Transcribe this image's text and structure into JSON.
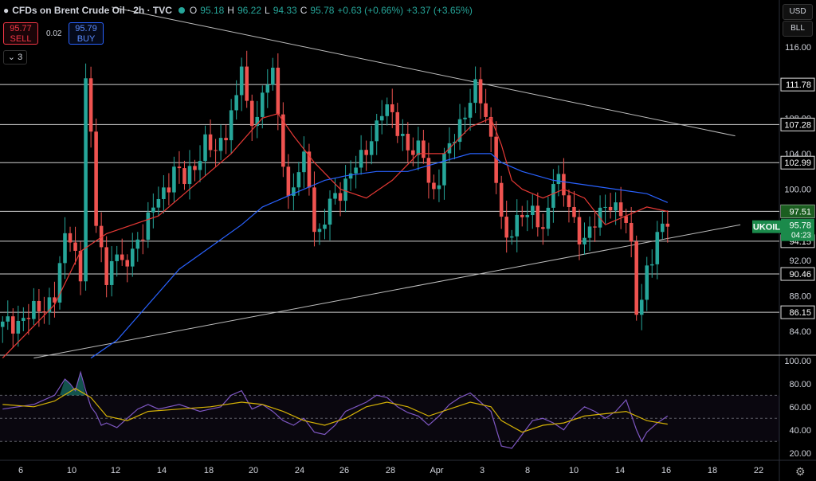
{
  "header": {
    "symbol": "CFDs on Brent Crude Oil · 2h · TVC",
    "open_label": "O",
    "open": "95.18",
    "high_label": "H",
    "high": "96.22",
    "low_label": "L",
    "low": "94.33",
    "close_label": "C",
    "close": "95.78",
    "change": "+0.63 (+0.66%)",
    "change2": "+3.37 (+3.65%)"
  },
  "trade": {
    "sell_price": "95.77",
    "sell_label": "SELL",
    "buy_price": "95.79",
    "buy_label": "BUY",
    "spread": "0.02"
  },
  "collapse_label": "3",
  "toolbar": {
    "currency": "USD",
    "unit": "BLL"
  },
  "colors": {
    "up": "#26a69a",
    "down": "#ef5350",
    "ema_short": "#e53935",
    "ema_long": "#2962ff",
    "rsi": "#7e57c2",
    "rsi_ma": "#d4b106"
  },
  "chart_data": [
    {
      "type": "candlestick",
      "title": "CFDs on Brent Crude Oil",
      "x_ticks": [
        "6",
        "10",
        "12",
        "14",
        "18",
        "20",
        "24",
        "26",
        "28",
        "Apr",
        "3",
        "8",
        "10",
        "14",
        "16",
        "18",
        "22"
      ],
      "y_ticks": [
        "116.00",
        "108.00",
        "104.00",
        "100.00",
        "92.00",
        "88.00",
        "84.00"
      ],
      "ylim": [
        81.5,
        119.5
      ],
      "horizontal_levels": [
        111.78,
        107.28,
        102.99,
        97.51,
        94.15,
        90.46,
        86.15
      ],
      "level_labels": [
        "111.78",
        "107.28",
        "102.99",
        "97.51",
        "94.15",
        "90.46",
        "86.15"
      ],
      "current": {
        "symbol": "UKOIL",
        "price": "95.78",
        "countdown": "04:23"
      },
      "close_path": [
        [
          0,
          84.5
        ],
        [
          6,
          86
        ],
        [
          10,
          88
        ],
        [
          12,
          94
        ],
        [
          13,
          95
        ],
        [
          14,
          93
        ],
        [
          14.5,
          96
        ],
        [
          15,
          90
        ],
        [
          15.5,
          115
        ],
        [
          16.5,
          111
        ],
        [
          17,
          105
        ],
        [
          18,
          96
        ],
        [
          18.5,
          100
        ],
        [
          19,
          94
        ],
        [
          20,
          89
        ],
        [
          21,
          93
        ],
        [
          22,
          92
        ],
        [
          23,
          91
        ],
        [
          24,
          92
        ],
        [
          25,
          93
        ],
        [
          26,
          95
        ],
        [
          27,
          95
        ],
        [
          28,
          96
        ],
        [
          29,
          98
        ],
        [
          31,
          100
        ],
        [
          33,
          102
        ],
        [
          35,
          101
        ],
        [
          37,
          103
        ],
        [
          39,
          105
        ],
        [
          41,
          104
        ],
        [
          43,
          107
        ],
        [
          45,
          110
        ],
        [
          46,
          114
        ],
        [
          47,
          109
        ],
        [
          48,
          108
        ],
        [
          49,
          109
        ],
        [
          50,
          110
        ],
        [
          51,
          112
        ],
        [
          52,
          113
        ],
        [
          53,
          108
        ],
        [
          54,
          104
        ],
        [
          55,
          99
        ],
        [
          56,
          100
        ],
        [
          57,
          102
        ],
        [
          58,
          103
        ],
        [
          59,
          101
        ],
        [
          60,
          96
        ],
        [
          61,
          95
        ],
        [
          63,
          98
        ],
        [
          65,
          100
        ],
        [
          67,
          102
        ],
        [
          69,
          103
        ],
        [
          71,
          106
        ],
        [
          73,
          109
        ],
        [
          75,
          108
        ],
        [
          77,
          106
        ],
        [
          79,
          104
        ],
        [
          81,
          104
        ],
        [
          82,
          101
        ],
        [
          83,
          100
        ],
        [
          85,
          103
        ],
        [
          87,
          106
        ],
        [
          89,
          109
        ],
        [
          91,
          111
        ],
        [
          92,
          110
        ],
        [
          93,
          108
        ],
        [
          94,
          106
        ],
        [
          95,
          102
        ],
        [
          96,
          96
        ],
        [
          97,
          94
        ],
        [
          98,
          95
        ],
        [
          100,
          98
        ],
        [
          102,
          97
        ],
        [
          103,
          96
        ],
        [
          104,
          95
        ],
        [
          105,
          98
        ],
        [
          106,
          102
        ],
        [
          107,
          101
        ],
        [
          108,
          99
        ],
        [
          109,
          98
        ],
        [
          110,
          96
        ],
        [
          111,
          95
        ],
        [
          112,
          95
        ],
        [
          113,
          95
        ],
        [
          115,
          97
        ],
        [
          116,
          98
        ],
        [
          117,
          99
        ],
        [
          118,
          98
        ],
        [
          120,
          96
        ],
        [
          121,
          93
        ],
        [
          122,
          87
        ],
        [
          123,
          88
        ],
        [
          124,
          91
        ],
        [
          125,
          92
        ],
        [
          126,
          94
        ],
        [
          127,
          96
        ],
        [
          128,
          95.78
        ]
      ],
      "series": [
        {
          "name": "",
          "kind": "ema_short",
          "values": [
            [
              0,
              81
            ],
            [
              10,
              87
            ],
            [
              15,
              93
            ],
            [
              20,
              95
            ],
            [
              30,
              97
            ],
            [
              38,
              101
            ],
            [
              44,
              104
            ],
            [
              50,
              108
            ],
            [
              53,
              108.5
            ],
            [
              56,
              106
            ],
            [
              60,
              103
            ],
            [
              65,
              100
            ],
            [
              70,
              99
            ],
            [
              75,
              101
            ],
            [
              80,
              104
            ],
            [
              85,
              104
            ],
            [
              90,
              107
            ],
            [
              94,
              108
            ],
            [
              96,
              105
            ],
            [
              98,
              101
            ],
            [
              100,
              100
            ],
            [
              104,
              99
            ],
            [
              108,
              100
            ],
            [
              112,
              99
            ],
            [
              116,
              96
            ],
            [
              120,
              97
            ],
            [
              124,
              98
            ],
            [
              128,
              97.5
            ]
          ]
        },
        {
          "name": "",
          "kind": "ema_long",
          "values": [
            [
              17,
              81
            ],
            [
              22,
              83
            ],
            [
              28,
              87
            ],
            [
              34,
              91
            ],
            [
              40,
              93.5
            ],
            [
              46,
              96
            ],
            [
              50,
              98
            ],
            [
              54,
              99
            ],
            [
              58,
              100
            ],
            [
              62,
              101
            ],
            [
              66,
              101.5
            ],
            [
              72,
              102
            ],
            [
              78,
              102
            ],
            [
              84,
              103
            ],
            [
              90,
              104
            ],
            [
              94,
              104
            ],
            [
              96,
              103
            ],
            [
              100,
              102
            ],
            [
              106,
              101
            ],
            [
              112,
              100.5
            ],
            [
              118,
              100
            ],
            [
              124,
              99.5
            ],
            [
              128,
              98.5
            ]
          ]
        }
      ],
      "trendlines": [
        {
          "from": [
            21,
            120.5
          ],
          "to": [
            141,
            106
          ]
        },
        {
          "from": [
            6,
            81
          ],
          "to": [
            142,
            96
          ]
        }
      ]
    },
    {
      "type": "line",
      "title": "RSI",
      "y_ticks": [
        "100.00",
        "80.00",
        "60.00",
        "40.00",
        "20.00"
      ],
      "ylim": [
        15,
        102
      ],
      "bands": [
        30,
        50,
        70
      ],
      "series": [
        {
          "name": "",
          "kind": "rsi",
          "values": [
            [
              0,
              58
            ],
            [
              6,
              62
            ],
            [
              10,
              70
            ],
            [
              12,
              84
            ],
            [
              13,
              80
            ],
            [
              14,
              74
            ],
            [
              15,
              90
            ],
            [
              16,
              74
            ],
            [
              17,
              60
            ],
            [
              18,
              54
            ],
            [
              19,
              44
            ],
            [
              20,
              46
            ],
            [
              22,
              42
            ],
            [
              24,
              50
            ],
            [
              26,
              58
            ],
            [
              28,
              62
            ],
            [
              30,
              58
            ],
            [
              34,
              62
            ],
            [
              38,
              56
            ],
            [
              42,
              60
            ],
            [
              44,
              70
            ],
            [
              46,
              74
            ],
            [
              48,
              58
            ],
            [
              50,
              62
            ],
            [
              52,
              56
            ],
            [
              54,
              48
            ],
            [
              56,
              44
            ],
            [
              58,
              50
            ],
            [
              60,
              38
            ],
            [
              62,
              36
            ],
            [
              64,
              44
            ],
            [
              66,
              56
            ],
            [
              68,
              60
            ],
            [
              70,
              64
            ],
            [
              72,
              70
            ],
            [
              74,
              68
            ],
            [
              76,
              60
            ],
            [
              78,
              55
            ],
            [
              80,
              52
            ],
            [
              82,
              44
            ],
            [
              84,
              52
            ],
            [
              86,
              62
            ],
            [
              88,
              68
            ],
            [
              90,
              72
            ],
            [
              92,
              64
            ],
            [
              94,
              56
            ],
            [
              96,
              26
            ],
            [
              98,
              24
            ],
            [
              100,
              36
            ],
            [
              102,
              48
            ],
            [
              104,
              50
            ],
            [
              106,
              46
            ],
            [
              108,
              40
            ],
            [
              110,
              52
            ],
            [
              112,
              60
            ],
            [
              114,
              56
            ],
            [
              116,
              50
            ],
            [
              118,
              56
            ],
            [
              120,
              66
            ],
            [
              122,
              40
            ],
            [
              123,
              30
            ],
            [
              124,
              38
            ],
            [
              126,
              46
            ],
            [
              128,
              52
            ]
          ]
        },
        {
          "name": "",
          "kind": "rsi_ma",
          "values": [
            [
              0,
              62
            ],
            [
              6,
              60
            ],
            [
              10,
              65
            ],
            [
              14,
              76
            ],
            [
              17,
              68
            ],
            [
              20,
              52
            ],
            [
              24,
              48
            ],
            [
              28,
              56
            ],
            [
              34,
              58
            ],
            [
              40,
              60
            ],
            [
              46,
              64
            ],
            [
              50,
              62
            ],
            [
              54,
              56
            ],
            [
              58,
              48
            ],
            [
              62,
              44
            ],
            [
              66,
              50
            ],
            [
              70,
              60
            ],
            [
              74,
              64
            ],
            [
              78,
              60
            ],
            [
              82,
              52
            ],
            [
              86,
              58
            ],
            [
              90,
              64
            ],
            [
              94,
              60
            ],
            [
              96,
              48
            ],
            [
              100,
              38
            ],
            [
              104,
              44
            ],
            [
              108,
              46
            ],
            [
              112,
              52
            ],
            [
              116,
              54
            ],
            [
              120,
              56
            ],
            [
              124,
              48
            ],
            [
              128,
              45
            ]
          ]
        }
      ]
    }
  ]
}
